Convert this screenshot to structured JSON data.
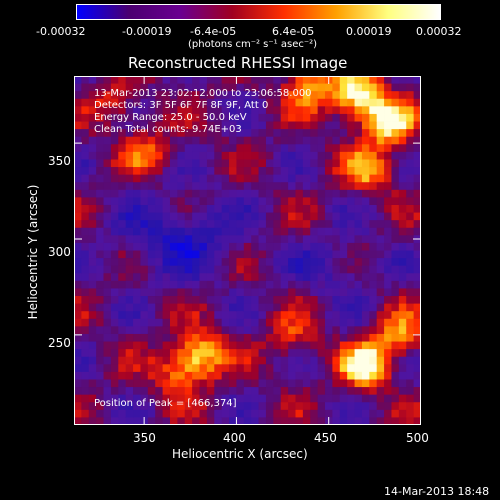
{
  "colorbar": {
    "tick_labels": [
      "-0.00032",
      "-0.00019",
      "-6.4e-05",
      "6.4e-05",
      "0.00019",
      "0.00032"
    ],
    "units_label": "(photons cm⁻² s⁻¹ asec⁻²)",
    "colors": [
      "#0000ff",
      "#4a0070",
      "#6a0090",
      "#a00020",
      "#ff3000",
      "#ffa000",
      "#ffff80",
      "#ffffff"
    ]
  },
  "chart_data": {
    "type": "heatmap",
    "title": "Reconstructed RHESSI Image",
    "xlabel": "Heliocentric X (arcsec)",
    "ylabel": "Heliocentric Y (arcsec)",
    "xlim": [
      312,
      500
    ],
    "ylim": [
      203,
      385
    ],
    "x_ticks": [
      "350",
      "400",
      "450",
      "500"
    ],
    "y_ticks": [
      "250",
      "300",
      "350"
    ],
    "annotations": [
      "13-Mar-2013 23:02:12.000 to 23:06:58.000",
      "Detectors: 3F 5F 6F 7F 8F 9F, Att 0",
      "Energy Range: 25.0 - 50.0 keV",
      "Clean    Total counts: 9.74E+03"
    ],
    "peak_label": "Position of Peak = [466,374]",
    "bright_regions": [
      {
        "x": 466,
        "y": 374,
        "level": 1.0
      },
      {
        "x": 482,
        "y": 360,
        "level": 0.9
      },
      {
        "x": 440,
        "y": 380,
        "level": 0.7
      },
      {
        "x": 472,
        "y": 335,
        "level": 0.6
      },
      {
        "x": 380,
        "y": 238,
        "level": 0.85
      },
      {
        "x": 368,
        "y": 228,
        "level": 0.5
      },
      {
        "x": 470,
        "y": 232,
        "level": 0.9
      },
      {
        "x": 488,
        "y": 248,
        "level": 0.6
      },
      {
        "x": 430,
        "y": 246,
        "level": 0.4
      },
      {
        "x": 335,
        "y": 370,
        "level": 0.4
      },
      {
        "x": 352,
        "y": 345,
        "level": 0.45
      }
    ]
  },
  "footer": {
    "timestamp": "14-Mar-2013 18:48"
  }
}
